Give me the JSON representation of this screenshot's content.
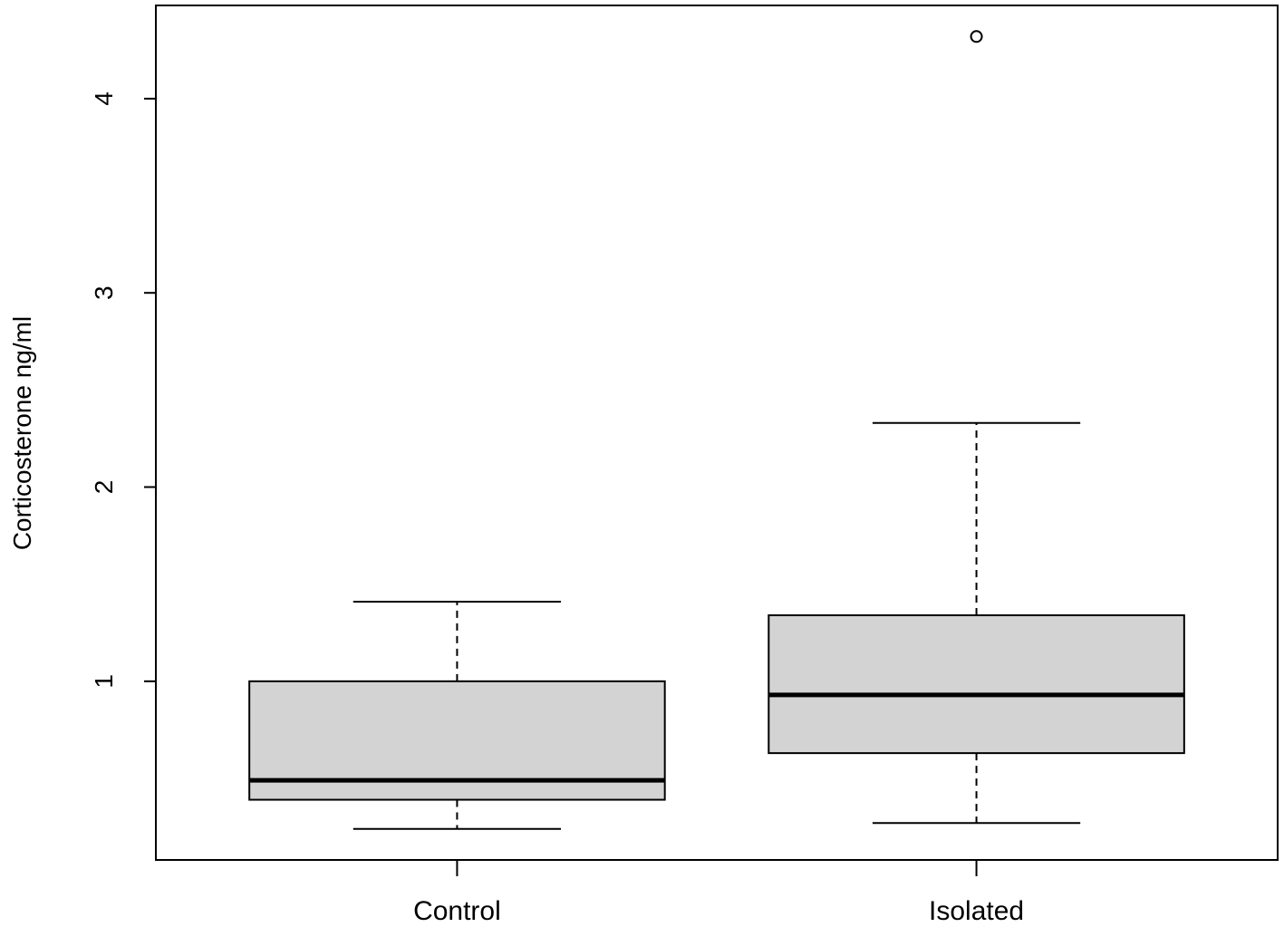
{
  "chart_data": {
    "type": "box",
    "y_label": "Corticosterone ng/ml",
    "categories": [
      "Control",
      "Isolated"
    ],
    "boxes": [
      {
        "min": 0.24,
        "q1": 0.39,
        "median": 0.49,
        "q3": 1.0,
        "max": 1.41,
        "outliers": []
      },
      {
        "min": 0.27,
        "q1": 0.63,
        "median": 0.93,
        "q3": 1.34,
        "max": 2.33,
        "outliers": [
          4.32
        ]
      }
    ],
    "color": "#d3d3d3",
    "ylim": [
      0.08,
      4.48
    ],
    "yticks": [
      1,
      2,
      3,
      4
    ]
  }
}
